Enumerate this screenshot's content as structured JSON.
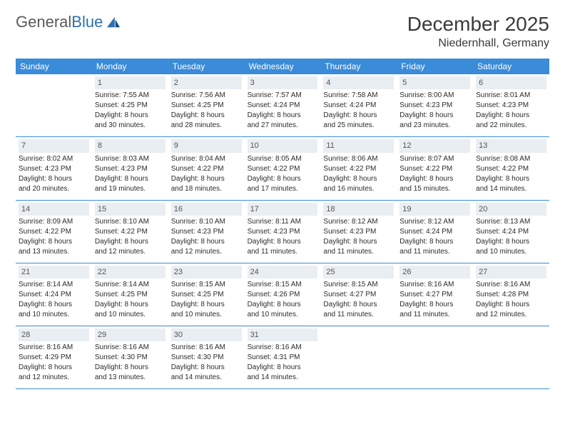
{
  "brand": {
    "name1": "General",
    "name2": "Blue"
  },
  "title": "December 2025",
  "location": "Niedernhall, Germany",
  "colors": {
    "header_bg": "#3a8bd8",
    "header_text": "#ffffff",
    "daynum_bg": "#e9eef3",
    "daynum_text": "#555555",
    "rule": "#3a8bd8",
    "body_text": "#2b2b2b",
    "title_text": "#3a3a3a"
  },
  "dayNames": [
    "Sunday",
    "Monday",
    "Tuesday",
    "Wednesday",
    "Thursday",
    "Friday",
    "Saturday"
  ],
  "weeks": [
    [
      null,
      {
        "n": "1",
        "sr": "Sunrise: 7:55 AM",
        "ss": "Sunset: 4:25 PM",
        "d1": "Daylight: 8 hours",
        "d2": "and 30 minutes."
      },
      {
        "n": "2",
        "sr": "Sunrise: 7:56 AM",
        "ss": "Sunset: 4:25 PM",
        "d1": "Daylight: 8 hours",
        "d2": "and 28 minutes."
      },
      {
        "n": "3",
        "sr": "Sunrise: 7:57 AM",
        "ss": "Sunset: 4:24 PM",
        "d1": "Daylight: 8 hours",
        "d2": "and 27 minutes."
      },
      {
        "n": "4",
        "sr": "Sunrise: 7:58 AM",
        "ss": "Sunset: 4:24 PM",
        "d1": "Daylight: 8 hours",
        "d2": "and 25 minutes."
      },
      {
        "n": "5",
        "sr": "Sunrise: 8:00 AM",
        "ss": "Sunset: 4:23 PM",
        "d1": "Daylight: 8 hours",
        "d2": "and 23 minutes."
      },
      {
        "n": "6",
        "sr": "Sunrise: 8:01 AM",
        "ss": "Sunset: 4:23 PM",
        "d1": "Daylight: 8 hours",
        "d2": "and 22 minutes."
      }
    ],
    [
      {
        "n": "7",
        "sr": "Sunrise: 8:02 AM",
        "ss": "Sunset: 4:23 PM",
        "d1": "Daylight: 8 hours",
        "d2": "and 20 minutes."
      },
      {
        "n": "8",
        "sr": "Sunrise: 8:03 AM",
        "ss": "Sunset: 4:23 PM",
        "d1": "Daylight: 8 hours",
        "d2": "and 19 minutes."
      },
      {
        "n": "9",
        "sr": "Sunrise: 8:04 AM",
        "ss": "Sunset: 4:22 PM",
        "d1": "Daylight: 8 hours",
        "d2": "and 18 minutes."
      },
      {
        "n": "10",
        "sr": "Sunrise: 8:05 AM",
        "ss": "Sunset: 4:22 PM",
        "d1": "Daylight: 8 hours",
        "d2": "and 17 minutes."
      },
      {
        "n": "11",
        "sr": "Sunrise: 8:06 AM",
        "ss": "Sunset: 4:22 PM",
        "d1": "Daylight: 8 hours",
        "d2": "and 16 minutes."
      },
      {
        "n": "12",
        "sr": "Sunrise: 8:07 AM",
        "ss": "Sunset: 4:22 PM",
        "d1": "Daylight: 8 hours",
        "d2": "and 15 minutes."
      },
      {
        "n": "13",
        "sr": "Sunrise: 8:08 AM",
        "ss": "Sunset: 4:22 PM",
        "d1": "Daylight: 8 hours",
        "d2": "and 14 minutes."
      }
    ],
    [
      {
        "n": "14",
        "sr": "Sunrise: 8:09 AM",
        "ss": "Sunset: 4:22 PM",
        "d1": "Daylight: 8 hours",
        "d2": "and 13 minutes."
      },
      {
        "n": "15",
        "sr": "Sunrise: 8:10 AM",
        "ss": "Sunset: 4:22 PM",
        "d1": "Daylight: 8 hours",
        "d2": "and 12 minutes."
      },
      {
        "n": "16",
        "sr": "Sunrise: 8:10 AM",
        "ss": "Sunset: 4:23 PM",
        "d1": "Daylight: 8 hours",
        "d2": "and 12 minutes."
      },
      {
        "n": "17",
        "sr": "Sunrise: 8:11 AM",
        "ss": "Sunset: 4:23 PM",
        "d1": "Daylight: 8 hours",
        "d2": "and 11 minutes."
      },
      {
        "n": "18",
        "sr": "Sunrise: 8:12 AM",
        "ss": "Sunset: 4:23 PM",
        "d1": "Daylight: 8 hours",
        "d2": "and 11 minutes."
      },
      {
        "n": "19",
        "sr": "Sunrise: 8:12 AM",
        "ss": "Sunset: 4:24 PM",
        "d1": "Daylight: 8 hours",
        "d2": "and 11 minutes."
      },
      {
        "n": "20",
        "sr": "Sunrise: 8:13 AM",
        "ss": "Sunset: 4:24 PM",
        "d1": "Daylight: 8 hours",
        "d2": "and 10 minutes."
      }
    ],
    [
      {
        "n": "21",
        "sr": "Sunrise: 8:14 AM",
        "ss": "Sunset: 4:24 PM",
        "d1": "Daylight: 8 hours",
        "d2": "and 10 minutes."
      },
      {
        "n": "22",
        "sr": "Sunrise: 8:14 AM",
        "ss": "Sunset: 4:25 PM",
        "d1": "Daylight: 8 hours",
        "d2": "and 10 minutes."
      },
      {
        "n": "23",
        "sr": "Sunrise: 8:15 AM",
        "ss": "Sunset: 4:25 PM",
        "d1": "Daylight: 8 hours",
        "d2": "and 10 minutes."
      },
      {
        "n": "24",
        "sr": "Sunrise: 8:15 AM",
        "ss": "Sunset: 4:26 PM",
        "d1": "Daylight: 8 hours",
        "d2": "and 10 minutes."
      },
      {
        "n": "25",
        "sr": "Sunrise: 8:15 AM",
        "ss": "Sunset: 4:27 PM",
        "d1": "Daylight: 8 hours",
        "d2": "and 11 minutes."
      },
      {
        "n": "26",
        "sr": "Sunrise: 8:16 AM",
        "ss": "Sunset: 4:27 PM",
        "d1": "Daylight: 8 hours",
        "d2": "and 11 minutes."
      },
      {
        "n": "27",
        "sr": "Sunrise: 8:16 AM",
        "ss": "Sunset: 4:28 PM",
        "d1": "Daylight: 8 hours",
        "d2": "and 12 minutes."
      }
    ],
    [
      {
        "n": "28",
        "sr": "Sunrise: 8:16 AM",
        "ss": "Sunset: 4:29 PM",
        "d1": "Daylight: 8 hours",
        "d2": "and 12 minutes."
      },
      {
        "n": "29",
        "sr": "Sunrise: 8:16 AM",
        "ss": "Sunset: 4:30 PM",
        "d1": "Daylight: 8 hours",
        "d2": "and 13 minutes."
      },
      {
        "n": "30",
        "sr": "Sunrise: 8:16 AM",
        "ss": "Sunset: 4:30 PM",
        "d1": "Daylight: 8 hours",
        "d2": "and 14 minutes."
      },
      {
        "n": "31",
        "sr": "Sunrise: 8:16 AM",
        "ss": "Sunset: 4:31 PM",
        "d1": "Daylight: 8 hours",
        "d2": "and 14 minutes."
      },
      null,
      null,
      null
    ]
  ]
}
